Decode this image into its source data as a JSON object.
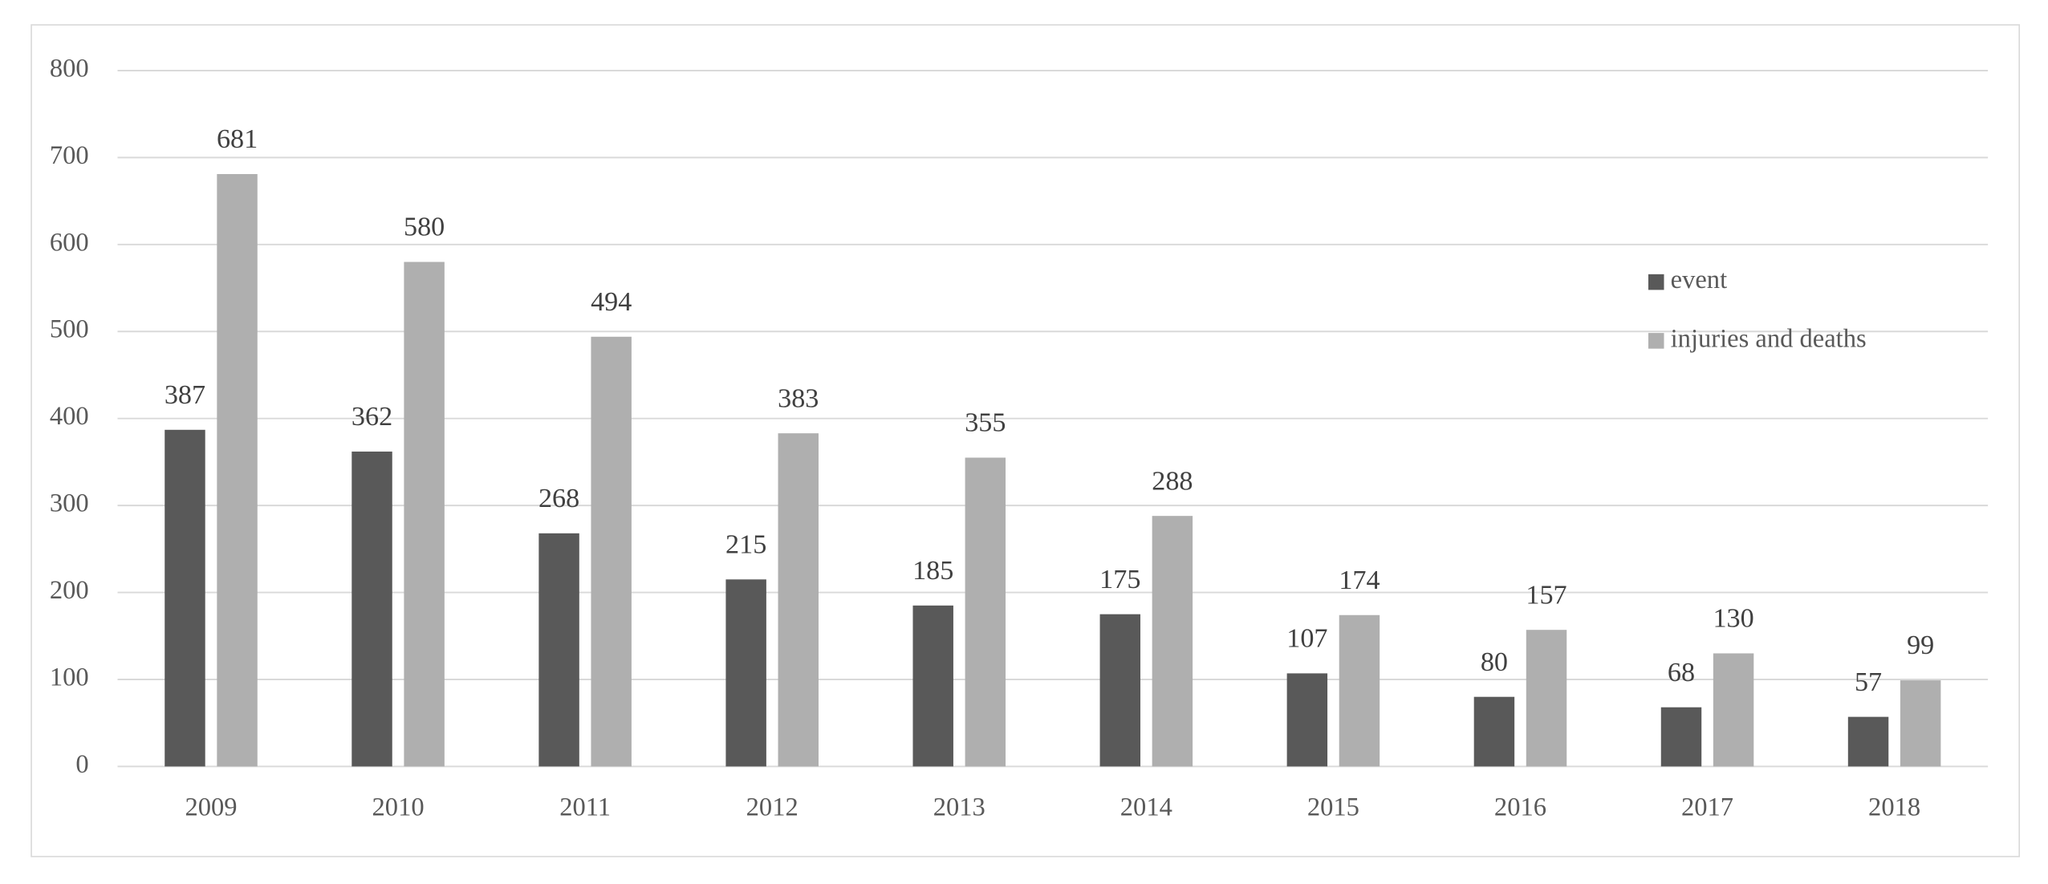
{
  "chart_data": {
    "type": "bar",
    "categories": [
      "2009",
      "2010",
      "2011",
      "2012",
      "2013",
      "2014",
      "2015",
      "2016",
      "2017",
      "2018"
    ],
    "series": [
      {
        "name": "event",
        "color": "#595959",
        "values": [
          387,
          362,
          268,
          215,
          185,
          175,
          107,
          80,
          68,
          57
        ]
      },
      {
        "name": "injuries and deaths",
        "color": "#afafaf",
        "values": [
          681,
          580,
          494,
          383,
          355,
          288,
          174,
          157,
          130,
          99
        ]
      }
    ],
    "ylim": [
      0,
      800
    ],
    "yticks": [
      0,
      100,
      200,
      300,
      400,
      500,
      600,
      700,
      800
    ],
    "grid": true,
    "legend": "right",
    "data_labels": true
  }
}
